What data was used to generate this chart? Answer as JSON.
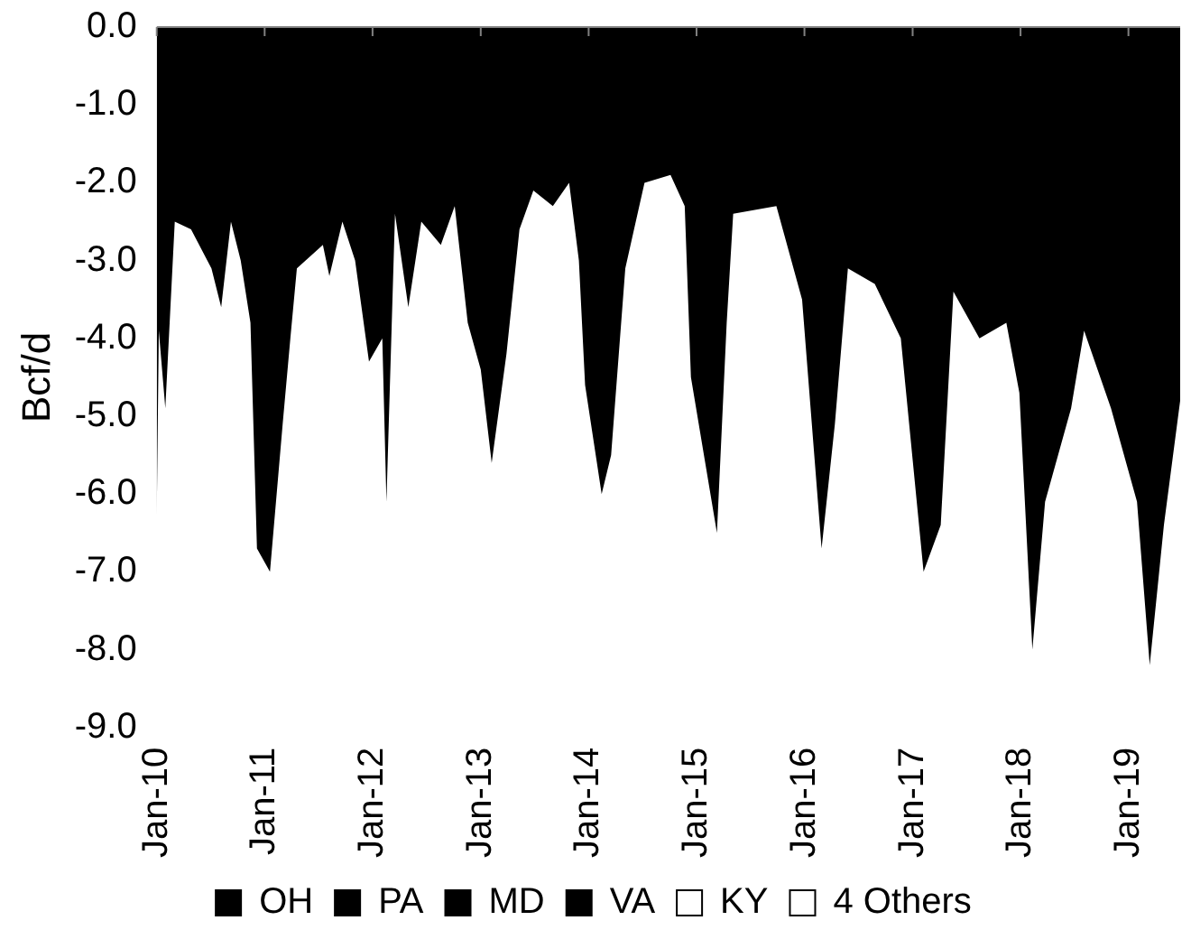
{
  "chart_data": {
    "type": "area",
    "ylabel": "Bcf/d",
    "x": [
      "2010-01-01",
      "2010-01-08",
      "2010-01-30",
      "2010-03-03",
      "2010-04-27",
      "2010-07-05",
      "2010-08-07",
      "2010-09-09",
      "2010-10-12",
      "2010-11-14",
      "2010-12-06",
      "2011-01-19",
      "2011-03-03",
      "2011-03-29",
      "2011-04-20",
      "2011-07-17",
      "2011-08-08",
      "2011-09-21",
      "2011-11-03",
      "2011-12-20",
      "2012-02-03",
      "2012-02-17",
      "2012-03-17",
      "2012-05-01",
      "2012-06-14",
      "2012-08-19",
      "2012-10-05",
      "2012-11-18",
      "2013-01-01",
      "2013-02-07",
      "2013-03-29",
      "2013-05-12",
      "2013-06-28",
      "2013-09-02",
      "2013-10-27",
      "2013-11-29",
      "2013-12-20",
      "2014-02-14",
      "2014-03-18",
      "2014-05-05",
      "2014-07-09",
      "2014-10-05",
      "2014-11-22",
      "2014-12-13",
      "2015-03-11",
      "2015-04-13",
      "2015-05-05",
      "2015-09-28",
      "2015-12-24",
      "2016-02-28",
      "2016-04-13",
      "2016-05-27",
      "2016-08-26",
      "2016-11-22",
      "2017-02-07",
      "2017-04-06",
      "2017-05-19",
      "2017-08-15",
      "2017-11-14",
      "2017-12-28",
      "2018-02-10",
      "2018-03-25",
      "2018-06-21",
      "2018-08-04",
      "2018-11-03",
      "2019-01-30",
      "2019-03-14",
      "2019-05-01",
      "2019-06-25"
    ],
    "series": [
      {
        "name": "OH",
        "color": "#000000",
        "values": [
          -6.3,
          -3.9,
          -4.9,
          -2.5,
          -2.6,
          -3.1,
          -3.6,
          -2.5,
          -3.0,
          -3.8,
          -6.7,
          -7.0,
          -5.1,
          -4.0,
          -3.1,
          -2.8,
          -3.2,
          -2.5,
          -3.0,
          -4.3,
          -4.0,
          -6.1,
          -2.4,
          -3.6,
          -2.5,
          -2.8,
          -2.3,
          -3.8,
          -4.4,
          -5.6,
          -4.2,
          -2.6,
          -2.1,
          -2.3,
          -2.0,
          -3.0,
          -4.6,
          -6.0,
          -5.5,
          -3.1,
          -2.0,
          -1.9,
          -2.3,
          -4.5,
          -6.5,
          -3.8,
          -2.4,
          -2.3,
          -3.5,
          -6.7,
          -5.1,
          -3.1,
          -3.3,
          -4.0,
          -7.0,
          -6.4,
          -3.4,
          -4.0,
          -3.8,
          -4.7,
          -8.0,
          -6.1,
          -4.9,
          -3.9,
          -4.9,
          -6.1,
          -8.2,
          -6.4,
          -4.8
        ]
      },
      {
        "name": "PA",
        "color": "#000000",
        "values": [
          null,
          null,
          null,
          null,
          null,
          null,
          null,
          null,
          null,
          null,
          null,
          null,
          null,
          null,
          null,
          null,
          null,
          null,
          null,
          null,
          null,
          null,
          null,
          null,
          null,
          null,
          null,
          null,
          null,
          null,
          null,
          null,
          null,
          null,
          null,
          null,
          null,
          null,
          null,
          null,
          null,
          null,
          null,
          null,
          null,
          null,
          null,
          null,
          null,
          null,
          null,
          null,
          null,
          null,
          null,
          null,
          null,
          null,
          null,
          null,
          null,
          null,
          null,
          null,
          null,
          null,
          null,
          null,
          null
        ]
      },
      {
        "name": "MD",
        "color": "#000000",
        "values": [
          null,
          null,
          null,
          null,
          null,
          null,
          null,
          null,
          null,
          null,
          null,
          null,
          null,
          null,
          null,
          null,
          null,
          null,
          null,
          null,
          null,
          null,
          null,
          null,
          null,
          null,
          null,
          null,
          null,
          null,
          null,
          null,
          null,
          null,
          null,
          null,
          null,
          null,
          null,
          null,
          null,
          null,
          null,
          null,
          null,
          null,
          null,
          null,
          null,
          null,
          null,
          null,
          null,
          null,
          null,
          null,
          null,
          null,
          null,
          null,
          null,
          null,
          null,
          null,
          null,
          null,
          null,
          null,
          null
        ]
      },
      {
        "name": "VA",
        "color": "#000000",
        "values": [
          null,
          null,
          null,
          null,
          null,
          null,
          null,
          null,
          null,
          null,
          null,
          null,
          null,
          null,
          null,
          null,
          null,
          null,
          null,
          null,
          null,
          null,
          null,
          null,
          null,
          null,
          null,
          null,
          null,
          null,
          null,
          null,
          null,
          null,
          null,
          null,
          null,
          null,
          null,
          null,
          null,
          null,
          null,
          null,
          null,
          null,
          null,
          null,
          null,
          null,
          null,
          null,
          null,
          null,
          null,
          null,
          null,
          null,
          null,
          null,
          null,
          null,
          null,
          null,
          null,
          null,
          null,
          null,
          null
        ]
      },
      {
        "name": "KY",
        "color": "#ffffff",
        "values": [
          null,
          null,
          null,
          null,
          null,
          null,
          null,
          null,
          null,
          null,
          null,
          null,
          null,
          null,
          null,
          null,
          null,
          null,
          null,
          null,
          null,
          null,
          null,
          null,
          null,
          null,
          null,
          null,
          null,
          null,
          null,
          null,
          null,
          null,
          null,
          null,
          null,
          null,
          null,
          null,
          null,
          null,
          null,
          null,
          null,
          null,
          null,
          null,
          null,
          null,
          null,
          null,
          null,
          null,
          null,
          null,
          null,
          null,
          null,
          null,
          null,
          null,
          null,
          null,
          null,
          null,
          null,
          null,
          null
        ]
      },
      {
        "name": "4 Others",
        "color": "#ffffff",
        "values": [
          null,
          null,
          null,
          null,
          null,
          null,
          null,
          null,
          null,
          null,
          null,
          null,
          null,
          null,
          null,
          null,
          null,
          null,
          null,
          null,
          null,
          null,
          null,
          null,
          null,
          null,
          null,
          null,
          null,
          null,
          null,
          null,
          null,
          null,
          null,
          null,
          null,
          null,
          null,
          null,
          null,
          null,
          null,
          null,
          null,
          null,
          null,
          null,
          null,
          null,
          null,
          null,
          null,
          null,
          null,
          null,
          null,
          null,
          null,
          null,
          null,
          null,
          null,
          null,
          null,
          null,
          null,
          null,
          null
        ]
      }
    ],
    "xlim": [
      "2010-01-01",
      "2019-06-25"
    ],
    "xticks": [
      {
        "value": "2010-01-01",
        "label": "Jan-10"
      },
      {
        "value": "2011-01-01",
        "label": "Jan-11"
      },
      {
        "value": "2012-01-01",
        "label": "Jan-12"
      },
      {
        "value": "2013-01-01",
        "label": "Jan-13"
      },
      {
        "value": "2014-01-01",
        "label": "Jan-14"
      },
      {
        "value": "2015-01-01",
        "label": "Jan-15"
      },
      {
        "value": "2016-01-01",
        "label": "Jan-16"
      },
      {
        "value": "2017-01-01",
        "label": "Jan-17"
      },
      {
        "value": "2018-01-01",
        "label": "Jan-18"
      },
      {
        "value": "2019-01-01",
        "label": "Jan-19"
      }
    ],
    "ylim": [
      -9,
      0
    ],
    "yticks": [
      {
        "value": 0,
        "label": "0.0"
      },
      {
        "value": -1,
        "label": "-1.0"
      },
      {
        "value": -2,
        "label": "-2.0"
      },
      {
        "value": -3,
        "label": "-3.0"
      },
      {
        "value": -4,
        "label": "-4.0"
      },
      {
        "value": -5,
        "label": "-5.0"
      },
      {
        "value": -6,
        "label": "-6.0"
      },
      {
        "value": -7,
        "label": "-7.0"
      },
      {
        "value": -8,
        "label": "-8.0"
      },
      {
        "value": -9,
        "label": "-9.0"
      }
    ],
    "grid": false,
    "legend": "bottom"
  }
}
